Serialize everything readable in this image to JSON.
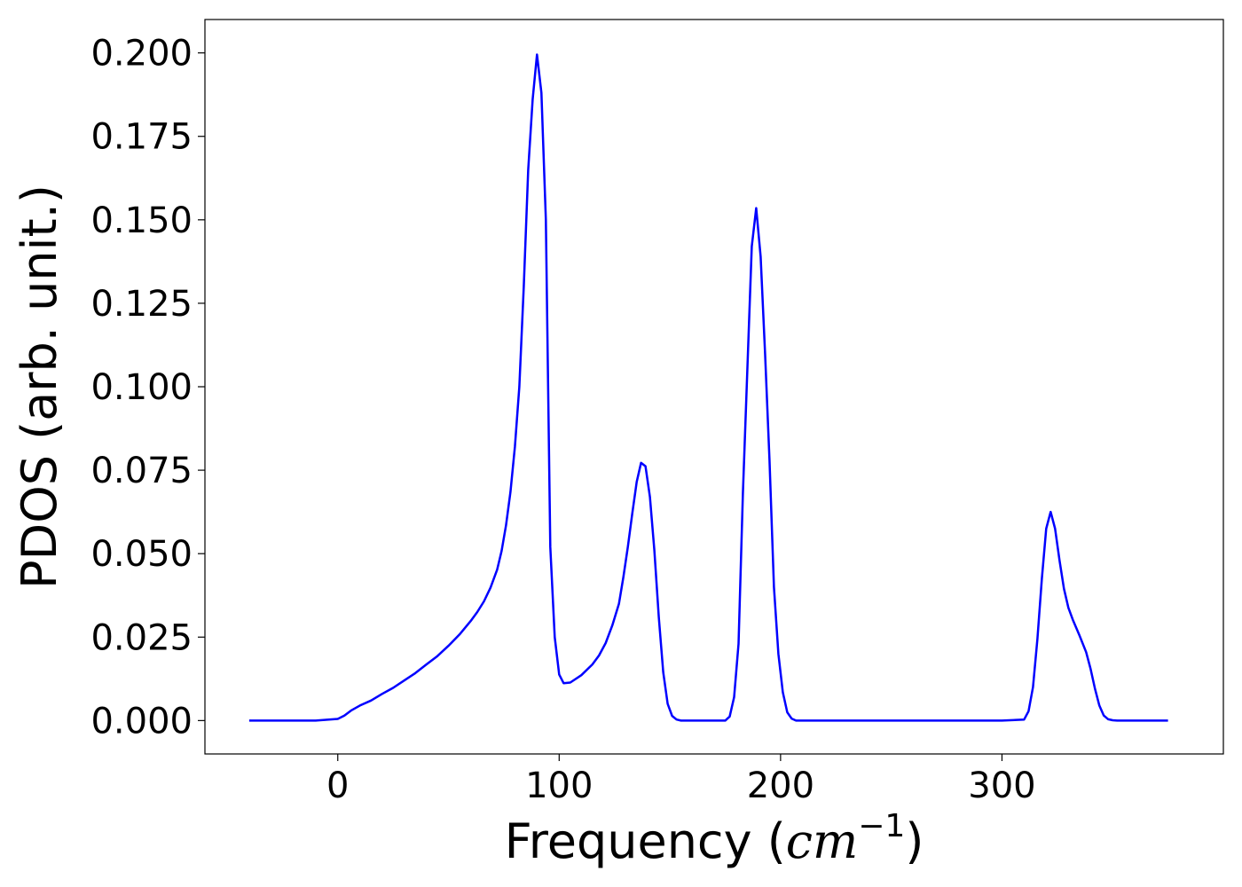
{
  "chart_data": {
    "type": "line",
    "title": "",
    "xlabel_prefix": "Frequency (",
    "xlabel_math": "cm",
    "xlabel_sup": "−1",
    "xlabel_suffix": ")",
    "ylabel": "PDOS (arb. unit.)",
    "xlim": [
      -60,
      400
    ],
    "ylim": [
      -0.01,
      0.21
    ],
    "xticks": [
      0,
      100,
      200,
      300
    ],
    "xtick_labels": [
      "0",
      "100",
      "200",
      "300"
    ],
    "yticks": [
      0.0,
      0.025,
      0.05,
      0.075,
      0.1,
      0.125,
      0.15,
      0.175,
      0.2
    ],
    "ytick_labels": [
      "0.000",
      "0.025",
      "0.050",
      "0.075",
      "0.100",
      "0.125",
      "0.150",
      "0.175",
      "0.200"
    ],
    "grid": false,
    "legend": "none",
    "series": [
      {
        "color": "#0000ff",
        "x": [
          -40,
          -10,
          0,
          3,
          6,
          10,
          15,
          20,
          25,
          30,
          35,
          40,
          45,
          50,
          55,
          60,
          63,
          66,
          69,
          72,
          74,
          76,
          78,
          80,
          82,
          84,
          86,
          88,
          90,
          92,
          94,
          96,
          98,
          100,
          102,
          105,
          110,
          115,
          118,
          121,
          124,
          127,
          129,
          131,
          133,
          135,
          137,
          139,
          141,
          143,
          145,
          147,
          149,
          151,
          153,
          155,
          165,
          175,
          177,
          179,
          181,
          183,
          185,
          187,
          189,
          191,
          193,
          195,
          197,
          199,
          201,
          203,
          205,
          207,
          209,
          211,
          215,
          250,
          300,
          310,
          312,
          314,
          316,
          318,
          320,
          322,
          324,
          326,
          328,
          330,
          332,
          335,
          338,
          340,
          342,
          344,
          346,
          348,
          350,
          352,
          355,
          375
        ],
        "y": [
          0.0,
          0.0,
          0.0005,
          0.0015,
          0.003,
          0.0045,
          0.006,
          0.008,
          0.0098,
          0.012,
          0.0142,
          0.0168,
          0.0193,
          0.0224,
          0.0258,
          0.0298,
          0.0325,
          0.0357,
          0.0398,
          0.0452,
          0.0508,
          0.0585,
          0.0685,
          0.082,
          0.1,
          0.13,
          0.165,
          0.186,
          0.1995,
          0.188,
          0.15,
          0.052,
          0.025,
          0.0138,
          0.0112,
          0.0114,
          0.0136,
          0.0168,
          0.0195,
          0.0232,
          0.0285,
          0.035,
          0.043,
          0.052,
          0.062,
          0.0715,
          0.0772,
          0.0762,
          0.067,
          0.051,
          0.031,
          0.0145,
          0.005,
          0.0014,
          0.0003,
          0.0,
          0.0,
          0.0,
          0.0012,
          0.007,
          0.023,
          0.068,
          0.105,
          0.142,
          0.1535,
          0.139,
          0.11,
          0.078,
          0.04,
          0.02,
          0.0085,
          0.0025,
          0.0006,
          0.0,
          0.0,
          0.0,
          0.0,
          0.0,
          0.0,
          0.0003,
          0.0028,
          0.01,
          0.0245,
          0.0425,
          0.0575,
          0.0625,
          0.0575,
          0.048,
          0.0395,
          0.0338,
          0.0302,
          0.0255,
          0.0205,
          0.0155,
          0.0095,
          0.0045,
          0.0015,
          0.0004,
          0.0001,
          0.0,
          0.0,
          0.0
        ]
      }
    ]
  }
}
